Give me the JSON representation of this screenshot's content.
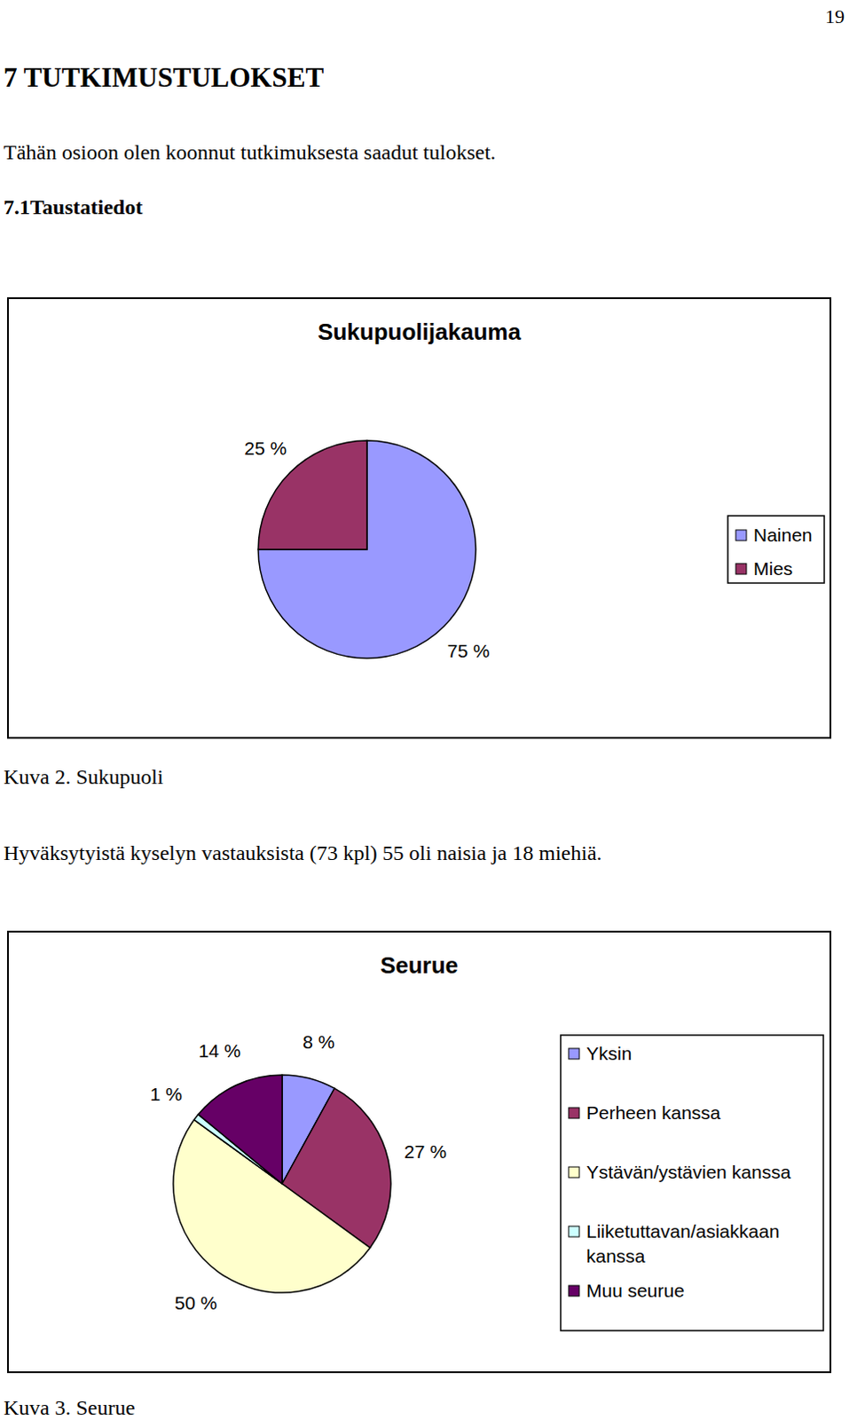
{
  "page_number": 19,
  "heading": "7 TUTKIMUSTULOKSET",
  "intro": "Tähän osioon olen koonnut tutkimuksesta saadut tulokset.",
  "section": "7.1Taustatiedot",
  "chart_data": [
    {
      "type": "pie",
      "title": "Sukupuolijakauma",
      "categories": [
        "Nainen",
        "Mies"
      ],
      "values": [
        75,
        25
      ],
      "value_labels": [
        "75 %",
        "25 %"
      ],
      "colors": [
        "#9999ff",
        "#993366"
      ],
      "data_labels": true,
      "legend": "right"
    },
    {
      "type": "pie",
      "title": "Seurue",
      "categories": [
        "Yksin",
        "Perheen kanssa",
        "Ystävän/ystävien kanssa",
        "Liiketuttavan/asiakkaan kanssa",
        "Muu seurue"
      ],
      "values": [
        8,
        27,
        50,
        1,
        14
      ],
      "value_labels": [
        "8 %",
        "27 %",
        "50 %",
        "1 %",
        "14 %"
      ],
      "colors": [
        "#9999ff",
        "#993366",
        "#ffffcc",
        "#ccffff",
        "#660066"
      ],
      "data_labels": true,
      "legend": "right"
    }
  ],
  "captions": [
    "Kuva 2. Sukupuoli",
    "Kuva 3. Seurue"
  ],
  "paragraph": "Hyväksytyistä kyselyn vastauksista (73 kpl) 55 oli naisia ja 18 miehiä."
}
